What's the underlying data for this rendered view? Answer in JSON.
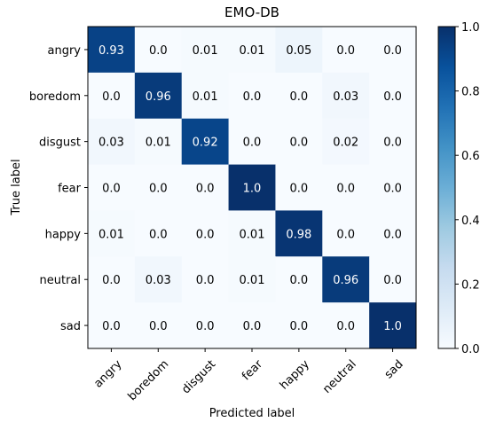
{
  "chart_data": {
    "type": "heatmap",
    "title": "EMO-DB",
    "xlabel": "Predicted label",
    "ylabel": "True label",
    "x_categories": [
      "angry",
      "boredom",
      "disgust",
      "fear",
      "happy",
      "neutral",
      "sad"
    ],
    "y_categories": [
      "angry",
      "boredom",
      "disgust",
      "fear",
      "happy",
      "neutral",
      "sad"
    ],
    "values": [
      [
        0.93,
        0.0,
        0.01,
        0.01,
        0.05,
        0.0,
        0.0
      ],
      [
        0.0,
        0.96,
        0.01,
        0.0,
        0.0,
        0.03,
        0.0
      ],
      [
        0.03,
        0.01,
        0.92,
        0.0,
        0.0,
        0.02,
        0.0
      ],
      [
        0.0,
        0.0,
        0.0,
        1.0,
        0.0,
        0.0,
        0.0
      ],
      [
        0.01,
        0.0,
        0.0,
        0.01,
        0.98,
        0.0,
        0.0
      ],
      [
        0.0,
        0.03,
        0.0,
        0.01,
        0.0,
        0.96,
        0.0
      ],
      [
        0.0,
        0.0,
        0.0,
        0.0,
        0.0,
        0.0,
        1.0
      ]
    ],
    "value_labels": [
      [
        "0.93",
        "0.0",
        "0.01",
        "0.01",
        "0.05",
        "0.0",
        "0.0"
      ],
      [
        "0.0",
        "0.96",
        "0.01",
        "0.0",
        "0.0",
        "0.03",
        "0.0"
      ],
      [
        "0.03",
        "0.01",
        "0.92",
        "0.0",
        "0.0",
        "0.02",
        "0.0"
      ],
      [
        "0.0",
        "0.0",
        "0.0",
        "1.0",
        "0.0",
        "0.0",
        "0.0"
      ],
      [
        "0.01",
        "0.0",
        "0.0",
        "0.01",
        "0.98",
        "0.0",
        "0.0"
      ],
      [
        "0.0",
        "0.03",
        "0.0",
        "0.01",
        "0.0",
        "0.96",
        "0.0"
      ],
      [
        "0.0",
        "0.0",
        "0.0",
        "0.0",
        "0.0",
        "0.0",
        "1.0"
      ]
    ],
    "colorbar": {
      "range": [
        0.0,
        1.0
      ],
      "ticks": [
        "0.0",
        "0.2",
        "0.4",
        "0.6",
        "0.8",
        "1.0"
      ],
      "colormap": "Blues",
      "low_color": "#f7fbff",
      "high_color": "#08306b"
    },
    "grid": false,
    "legend": "colorbar-right"
  }
}
